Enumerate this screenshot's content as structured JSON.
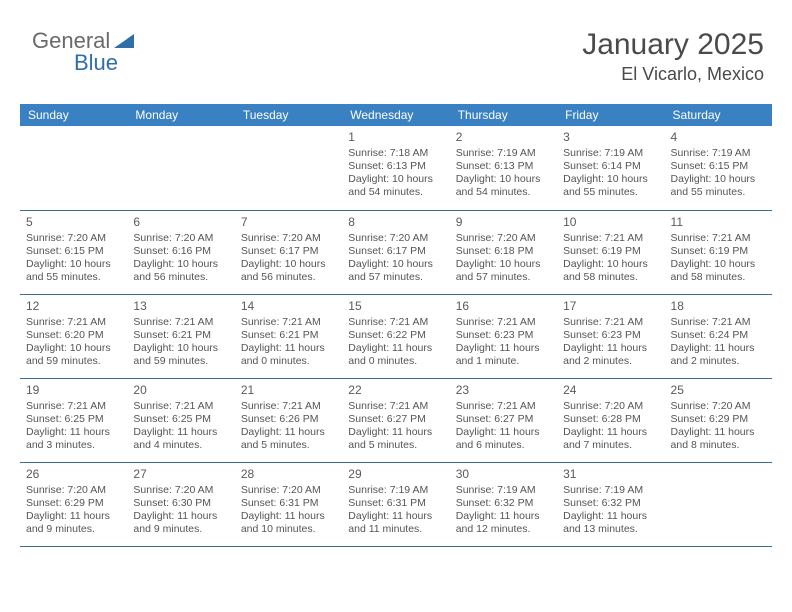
{
  "logo": {
    "text1": "General",
    "text2": "Blue"
  },
  "header": {
    "title": "January 2025",
    "location": "El Vicarlo, Mexico"
  },
  "colors": {
    "header_bg": "#3a81c4",
    "header_text": "#ffffff",
    "border": "#3a6a9a",
    "body_text": "#4a4a4a",
    "logo_gray": "#6a6a6a",
    "logo_blue": "#2f6fa8",
    "page_bg": "#ffffff"
  },
  "day_labels": [
    "Sunday",
    "Monday",
    "Tuesday",
    "Wednesday",
    "Thursday",
    "Friday",
    "Saturday"
  ],
  "weeks": [
    [
      null,
      null,
      null,
      {
        "n": "1",
        "sr": "7:18 AM",
        "ss": "6:13 PM",
        "dl": "10 hours and 54 minutes."
      },
      {
        "n": "2",
        "sr": "7:19 AM",
        "ss": "6:13 PM",
        "dl": "10 hours and 54 minutes."
      },
      {
        "n": "3",
        "sr": "7:19 AM",
        "ss": "6:14 PM",
        "dl": "10 hours and 55 minutes."
      },
      {
        "n": "4",
        "sr": "7:19 AM",
        "ss": "6:15 PM",
        "dl": "10 hours and 55 minutes."
      }
    ],
    [
      {
        "n": "5",
        "sr": "7:20 AM",
        "ss": "6:15 PM",
        "dl": "10 hours and 55 minutes."
      },
      {
        "n": "6",
        "sr": "7:20 AM",
        "ss": "6:16 PM",
        "dl": "10 hours and 56 minutes."
      },
      {
        "n": "7",
        "sr": "7:20 AM",
        "ss": "6:17 PM",
        "dl": "10 hours and 56 minutes."
      },
      {
        "n": "8",
        "sr": "7:20 AM",
        "ss": "6:17 PM",
        "dl": "10 hours and 57 minutes."
      },
      {
        "n": "9",
        "sr": "7:20 AM",
        "ss": "6:18 PM",
        "dl": "10 hours and 57 minutes."
      },
      {
        "n": "10",
        "sr": "7:21 AM",
        "ss": "6:19 PM",
        "dl": "10 hours and 58 minutes."
      },
      {
        "n": "11",
        "sr": "7:21 AM",
        "ss": "6:19 PM",
        "dl": "10 hours and 58 minutes."
      }
    ],
    [
      {
        "n": "12",
        "sr": "7:21 AM",
        "ss": "6:20 PM",
        "dl": "10 hours and 59 minutes."
      },
      {
        "n": "13",
        "sr": "7:21 AM",
        "ss": "6:21 PM",
        "dl": "10 hours and 59 minutes."
      },
      {
        "n": "14",
        "sr": "7:21 AM",
        "ss": "6:21 PM",
        "dl": "11 hours and 0 minutes."
      },
      {
        "n": "15",
        "sr": "7:21 AM",
        "ss": "6:22 PM",
        "dl": "11 hours and 0 minutes."
      },
      {
        "n": "16",
        "sr": "7:21 AM",
        "ss": "6:23 PM",
        "dl": "11 hours and 1 minute."
      },
      {
        "n": "17",
        "sr": "7:21 AM",
        "ss": "6:23 PM",
        "dl": "11 hours and 2 minutes."
      },
      {
        "n": "18",
        "sr": "7:21 AM",
        "ss": "6:24 PM",
        "dl": "11 hours and 2 minutes."
      }
    ],
    [
      {
        "n": "19",
        "sr": "7:21 AM",
        "ss": "6:25 PM",
        "dl": "11 hours and 3 minutes."
      },
      {
        "n": "20",
        "sr": "7:21 AM",
        "ss": "6:25 PM",
        "dl": "11 hours and 4 minutes."
      },
      {
        "n": "21",
        "sr": "7:21 AM",
        "ss": "6:26 PM",
        "dl": "11 hours and 5 minutes."
      },
      {
        "n": "22",
        "sr": "7:21 AM",
        "ss": "6:27 PM",
        "dl": "11 hours and 5 minutes."
      },
      {
        "n": "23",
        "sr": "7:21 AM",
        "ss": "6:27 PM",
        "dl": "11 hours and 6 minutes."
      },
      {
        "n": "24",
        "sr": "7:20 AM",
        "ss": "6:28 PM",
        "dl": "11 hours and 7 minutes."
      },
      {
        "n": "25",
        "sr": "7:20 AM",
        "ss": "6:29 PM",
        "dl": "11 hours and 8 minutes."
      }
    ],
    [
      {
        "n": "26",
        "sr": "7:20 AM",
        "ss": "6:29 PM",
        "dl": "11 hours and 9 minutes."
      },
      {
        "n": "27",
        "sr": "7:20 AM",
        "ss": "6:30 PM",
        "dl": "11 hours and 9 minutes."
      },
      {
        "n": "28",
        "sr": "7:20 AM",
        "ss": "6:31 PM",
        "dl": "11 hours and 10 minutes."
      },
      {
        "n": "29",
        "sr": "7:19 AM",
        "ss": "6:31 PM",
        "dl": "11 hours and 11 minutes."
      },
      {
        "n": "30",
        "sr": "7:19 AM",
        "ss": "6:32 PM",
        "dl": "11 hours and 12 minutes."
      },
      {
        "n": "31",
        "sr": "7:19 AM",
        "ss": "6:32 PM",
        "dl": "11 hours and 13 minutes."
      },
      null
    ]
  ],
  "labels": {
    "sunrise": "Sunrise:",
    "sunset": "Sunset:",
    "daylight": "Daylight:"
  }
}
